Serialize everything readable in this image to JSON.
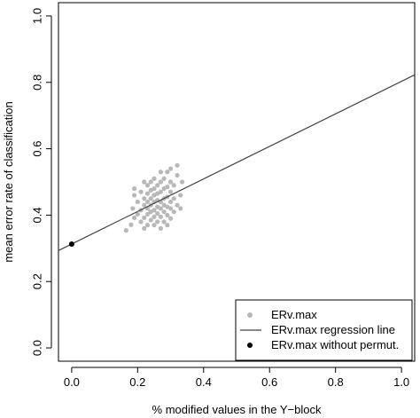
{
  "chart_data": {
    "type": "scatter",
    "title": "",
    "xlabel": "% modified values in the Y−block",
    "ylabel": "mean error rate of classification",
    "xlim": [
      -0.04,
      1.04
    ],
    "ylim": [
      -0.04,
      1.04
    ],
    "xticks": [
      0.0,
      0.2,
      0.4,
      0.6,
      0.8,
      1.0
    ],
    "xtick_labels": [
      "0.0",
      "0.2",
      "0.4",
      "0.6",
      "0.8",
      "1.0"
    ],
    "yticks": [
      0.0,
      0.2,
      0.4,
      0.6,
      0.8,
      1.0
    ],
    "ytick_labels": [
      "0.0",
      "0.2",
      "0.4",
      "0.6",
      "0.8",
      "1.0"
    ],
    "grid": false,
    "legend_position": "bottom-right",
    "series": [
      {
        "name": "ERv.max",
        "kind": "points",
        "color": "#b8b8b8",
        "points": [
          [
            0.165,
            0.354
          ],
          [
            0.18,
            0.371
          ],
          [
            0.185,
            0.42
          ],
          [
            0.19,
            0.392
          ],
          [
            0.19,
            0.46
          ],
          [
            0.19,
            0.48
          ],
          [
            0.2,
            0.403
          ],
          [
            0.2,
            0.44
          ],
          [
            0.21,
            0.38
          ],
          [
            0.21,
            0.415
          ],
          [
            0.21,
            0.47
          ],
          [
            0.22,
            0.36
          ],
          [
            0.22,
            0.392
          ],
          [
            0.22,
            0.43
          ],
          [
            0.22,
            0.45
          ],
          [
            0.22,
            0.5
          ],
          [
            0.23,
            0.37
          ],
          [
            0.23,
            0.403
          ],
          [
            0.23,
            0.42
          ],
          [
            0.23,
            0.44
          ],
          [
            0.23,
            0.465
          ],
          [
            0.23,
            0.49
          ],
          [
            0.24,
            0.385
          ],
          [
            0.24,
            0.41
          ],
          [
            0.24,
            0.43
          ],
          [
            0.24,
            0.45
          ],
          [
            0.24,
            0.475
          ],
          [
            0.24,
            0.5
          ],
          [
            0.25,
            0.37
          ],
          [
            0.25,
            0.395
          ],
          [
            0.25,
            0.415
          ],
          [
            0.25,
            0.44
          ],
          [
            0.25,
            0.46
          ],
          [
            0.25,
            0.48
          ],
          [
            0.25,
            0.51
          ],
          [
            0.26,
            0.38
          ],
          [
            0.26,
            0.405
          ],
          [
            0.26,
            0.425
          ],
          [
            0.26,
            0.445
          ],
          [
            0.26,
            0.465
          ],
          [
            0.26,
            0.49
          ],
          [
            0.27,
            0.36
          ],
          [
            0.27,
            0.395
          ],
          [
            0.27,
            0.42
          ],
          [
            0.27,
            0.44
          ],
          [
            0.27,
            0.47
          ],
          [
            0.27,
            0.5
          ],
          [
            0.27,
            0.53
          ],
          [
            0.28,
            0.38
          ],
          [
            0.28,
            0.41
          ],
          [
            0.28,
            0.43
          ],
          [
            0.28,
            0.45
          ],
          [
            0.28,
            0.48
          ],
          [
            0.28,
            0.51
          ],
          [
            0.29,
            0.37
          ],
          [
            0.29,
            0.4
          ],
          [
            0.29,
            0.425
          ],
          [
            0.29,
            0.455
          ],
          [
            0.29,
            0.485
          ],
          [
            0.29,
            0.53
          ],
          [
            0.3,
            0.39
          ],
          [
            0.3,
            0.42
          ],
          [
            0.3,
            0.44
          ],
          [
            0.3,
            0.47
          ],
          [
            0.3,
            0.5
          ],
          [
            0.3,
            0.54
          ],
          [
            0.31,
            0.41
          ],
          [
            0.31,
            0.45
          ],
          [
            0.31,
            0.49
          ],
          [
            0.32,
            0.43
          ],
          [
            0.32,
            0.52
          ],
          [
            0.32,
            0.55
          ],
          [
            0.33,
            0.46
          ],
          [
            0.33,
            0.42
          ],
          [
            0.335,
            0.5
          ]
        ]
      },
      {
        "name": "ERv.max regression line",
        "kind": "line",
        "color": "#444444",
        "intercept": 0.313,
        "slope": 0.49
      },
      {
        "name": "ERv.max without permut.",
        "kind": "points",
        "color": "#000000",
        "points": [
          [
            0.0,
            0.313
          ]
        ]
      }
    ]
  }
}
